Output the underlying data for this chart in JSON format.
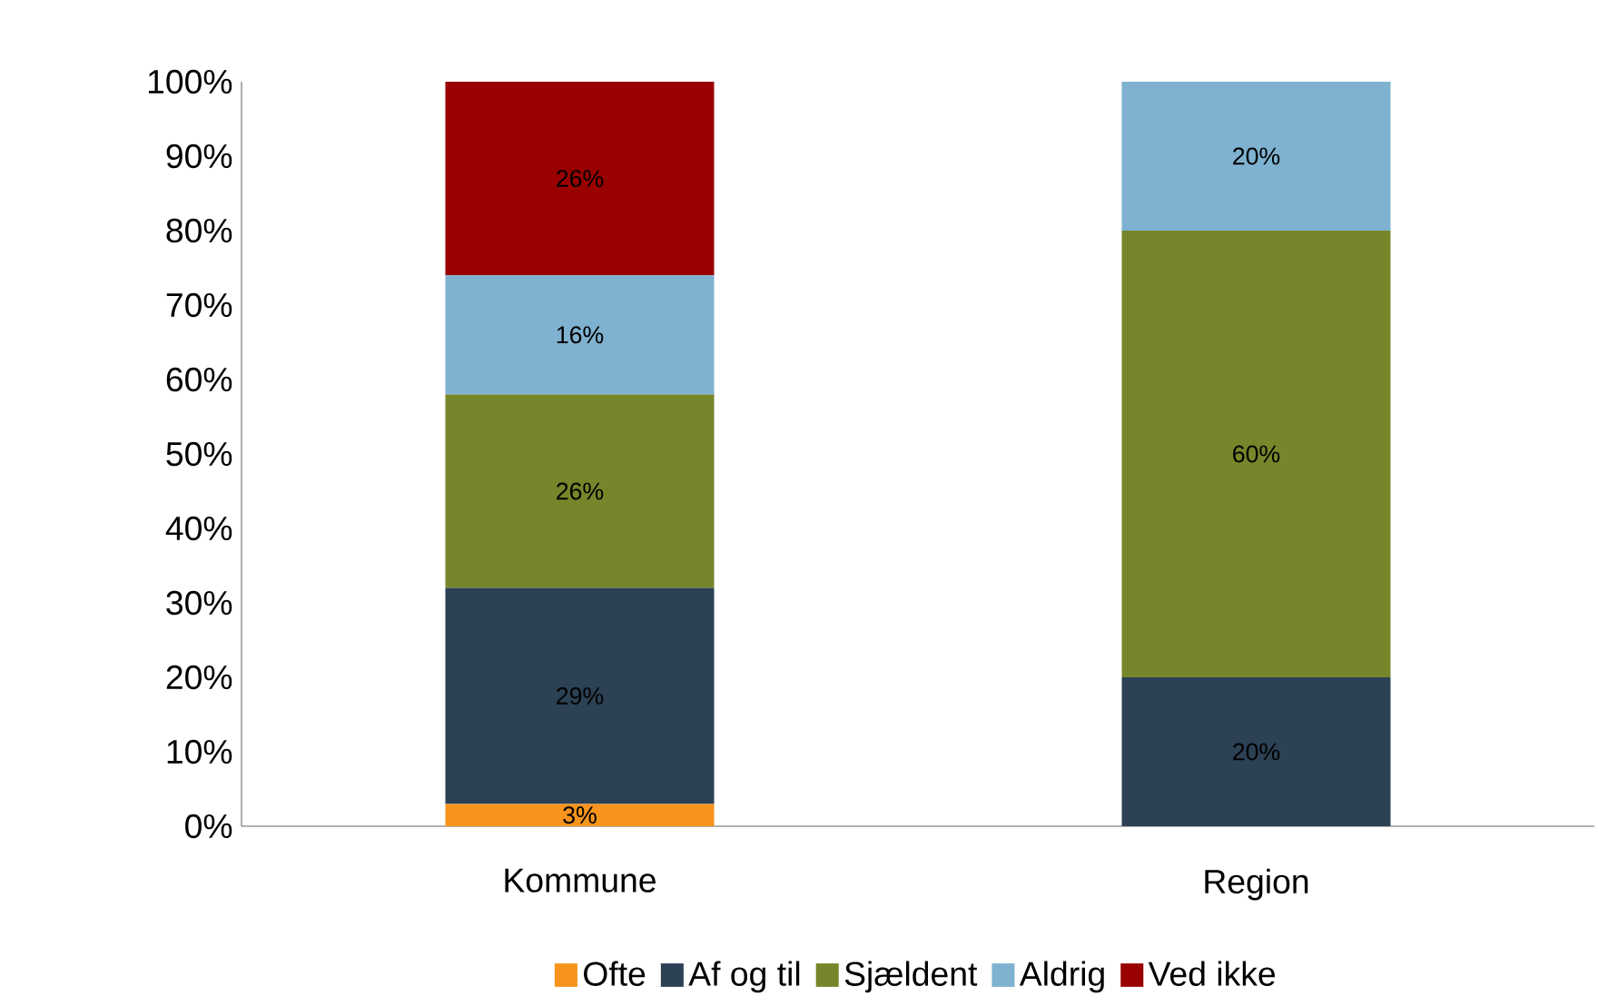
{
  "chart_data": {
    "type": "bar",
    "stacked": true,
    "categories": [
      "Kommune",
      "Region"
    ],
    "series": [
      {
        "name": "Ofte",
        "color": "#f7941d",
        "values": [
          3,
          0
        ],
        "value_labels": [
          "3%",
          null
        ]
      },
      {
        "name": "Af og til",
        "color": "#2c4154",
        "values": [
          29,
          20
        ],
        "value_labels": [
          "29%",
          "20%"
        ]
      },
      {
        "name": "Sjældent",
        "color": "#76862a",
        "values": [
          26,
          60
        ],
        "value_labels": [
          "26%",
          "60%"
        ]
      },
      {
        "name": "Aldrig",
        "color": "#7fb2d0",
        "values": [
          16,
          20
        ],
        "value_labels": [
          "16%",
          "20%"
        ]
      },
      {
        "name": "Ved ikke",
        "color": "#990000",
        "values": [
          26,
          0
        ],
        "value_labels": [
          "26%",
          null
        ]
      }
    ],
    "ylim": [
      0,
      100
    ],
    "yticks": [
      {
        "value": 0,
        "label": "0%"
      },
      {
        "value": 10,
        "label": "10%"
      },
      {
        "value": 20,
        "label": "20%"
      },
      {
        "value": 30,
        "label": "30%"
      },
      {
        "value": 40,
        "label": "40%"
      },
      {
        "value": 50,
        "label": "50%"
      },
      {
        "value": 60,
        "label": "60%"
      },
      {
        "value": 70,
        "label": "70%"
      },
      {
        "value": 80,
        "label": "80%"
      },
      {
        "value": 90,
        "label": "90%"
      },
      {
        "value": 100,
        "label": "100%"
      }
    ],
    "legend": "bottom"
  }
}
